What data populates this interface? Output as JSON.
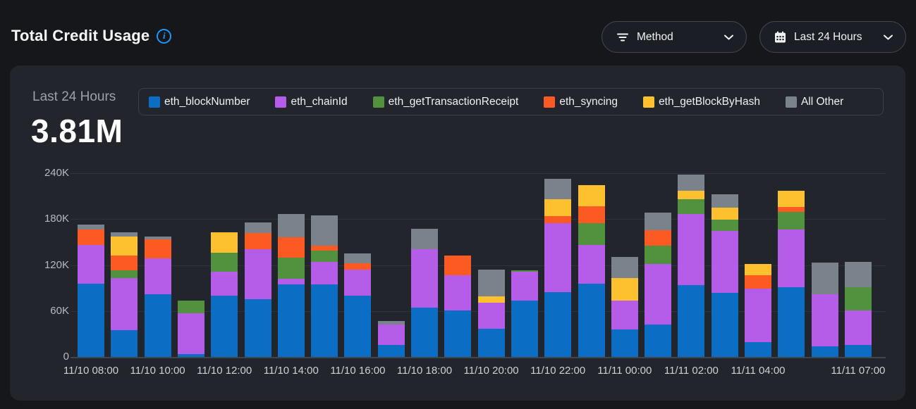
{
  "header": {
    "title": "Total Credit Usage",
    "buttons": [
      {
        "label": "Method",
        "icon": "filter-icon"
      },
      {
        "label": "Last 24 Hours",
        "icon": "calendar-icon"
      }
    ]
  },
  "panel": {
    "period_label": "Last 24 Hours",
    "total": "3.81M"
  },
  "colors": {
    "accent_info": "#2196f3",
    "blue": "#0b6dc3",
    "purple": "#b55ce8",
    "green": "#52913d",
    "orange": "#fc5a23",
    "yellow": "#fdc02f",
    "gray": "#7a828c"
  },
  "chart_data": {
    "type": "bar",
    "stacked": true,
    "title": "Total Credit Usage",
    "subtitle": "Last 24 Hours",
    "total_label": "3.81M",
    "ylim": [
      0,
      240000
    ],
    "grid": true,
    "legend_position": "top",
    "yticks": [
      {
        "value": 240000,
        "label": "240K"
      },
      {
        "value": 180000,
        "label": "180K"
      },
      {
        "value": 120000,
        "label": "120K"
      },
      {
        "value": 60000,
        "label": "60K"
      },
      {
        "value": 0,
        "label": "0"
      }
    ],
    "categories": [
      "11/10 08:00",
      "11/10 09:00",
      "11/10 10:00",
      "11/10 11:00",
      "11/10 12:00",
      "11/10 13:00",
      "11/10 14:00",
      "11/10 15:00",
      "11/10 16:00",
      "11/10 17:00",
      "11/10 18:00",
      "11/10 19:00",
      "11/10 20:00",
      "11/10 21:00",
      "11/10 22:00",
      "11/10 23:00",
      "11/11 00:00",
      "11/11 01:00",
      "11/11 02:00",
      "11/11 03:00",
      "11/11 04:00",
      "11/11 05:00",
      "11/11 06:00",
      "11/11 07:00"
    ],
    "xticks": [
      {
        "index": 0,
        "label": "11/10 08:00"
      },
      {
        "index": 2,
        "label": "11/10 10:00"
      },
      {
        "index": 4,
        "label": "11/10 12:00"
      },
      {
        "index": 6,
        "label": "11/10 14:00"
      },
      {
        "index": 8,
        "label": "11/10 16:00"
      },
      {
        "index": 10,
        "label": "11/10 18:00"
      },
      {
        "index": 12,
        "label": "11/10 20:00"
      },
      {
        "index": 14,
        "label": "11/10 22:00"
      },
      {
        "index": 16,
        "label": "11/11 00:00"
      },
      {
        "index": 18,
        "label": "11/11 02:00"
      },
      {
        "index": 20,
        "label": "11/11 04:00"
      },
      {
        "index": 23,
        "label": "11/11 07:00"
      }
    ],
    "series": [
      {
        "name": "eth_blockNumber",
        "color": "#0b6dc3",
        "values": [
          96000,
          35000,
          82000,
          4000,
          80000,
          75000,
          95000,
          95000,
          80000,
          16000,
          64000,
          61000,
          37000,
          74000,
          85000,
          96000,
          36000,
          42000,
          94000,
          84000,
          19000,
          91000,
          14000,
          16000
        ]
      },
      {
        "name": "eth_chainId",
        "color": "#b55ce8",
        "values": [
          50000,
          68000,
          47000,
          53000,
          31000,
          66000,
          7000,
          29000,
          34000,
          26000,
          77000,
          46000,
          34000,
          37000,
          90000,
          50000,
          38000,
          79000,
          93000,
          81000,
          70000,
          75000,
          68000,
          45000
        ]
      },
      {
        "name": "eth_getTransactionReceipt",
        "color": "#52913d",
        "values": [
          0,
          10000,
          0,
          17000,
          25000,
          0,
          28000,
          15000,
          0,
          0,
          0,
          0,
          0,
          2000,
          0,
          29000,
          0,
          24000,
          19000,
          14000,
          0,
          23000,
          0,
          30000
        ]
      },
      {
        "name": "eth_syncing",
        "color": "#fc5a23",
        "values": [
          20000,
          19000,
          25000,
          0,
          0,
          21000,
          26000,
          6000,
          8000,
          0,
          0,
          25000,
          0,
          0,
          9000,
          22000,
          0,
          21000,
          0,
          0,
          18000,
          7000,
          0,
          0
        ]
      },
      {
        "name": "eth_getBlockByHash",
        "color": "#fdc02f",
        "values": [
          0,
          25000,
          0,
          0,
          27000,
          0,
          0,
          0,
          0,
          0,
          0,
          0,
          8000,
          0,
          22000,
          27000,
          29000,
          0,
          11000,
          16000,
          14000,
          21000,
          0,
          0
        ]
      },
      {
        "name": "All Other",
        "color": "#7a828c",
        "values": [
          7000,
          6000,
          3000,
          0,
          0,
          14000,
          31000,
          40000,
          13000,
          5000,
          26000,
          0,
          35000,
          0,
          27000,
          0,
          28000,
          23000,
          21000,
          17000,
          0,
          0,
          41000,
          33000
        ]
      }
    ]
  }
}
